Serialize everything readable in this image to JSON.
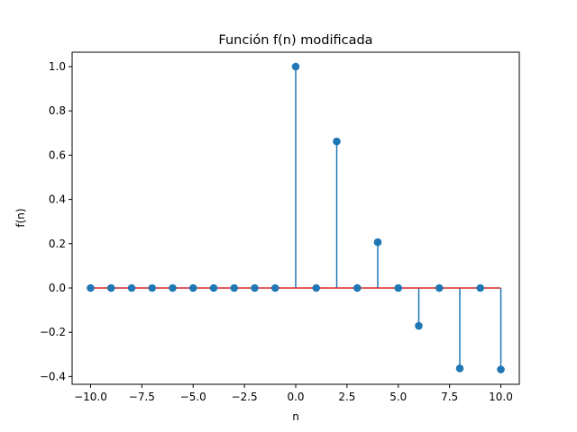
{
  "chart_data": {
    "type": "stem",
    "title": "Función f(n) modificada",
    "xlabel": "n",
    "ylabel": "f(n)",
    "xlim": [
      -10.9,
      10.9
    ],
    "ylim": [
      -0.435,
      1.065
    ],
    "xticks": [
      -10,
      -7.5,
      -5,
      -2.5,
      0,
      2.5,
      5,
      7.5,
      10
    ],
    "xtick_labels": [
      "−10.0",
      "−7.5",
      "−5.0",
      "−2.5",
      "0.0",
      "2.5",
      "5.0",
      "7.5",
      "10.0"
    ],
    "yticks": [
      -0.4,
      -0.2,
      0,
      0.2,
      0.4,
      0.6,
      0.8,
      1.0
    ],
    "ytick_labels": [
      "−0.4",
      "−0.2",
      "0.0",
      "0.2",
      "0.4",
      "0.6",
      "0.8",
      "1.0"
    ],
    "x": [
      -10,
      -9,
      -8,
      -7,
      -6,
      -5,
      -4,
      -3,
      -2,
      -1,
      0,
      1,
      2,
      3,
      4,
      5,
      6,
      7,
      8,
      9,
      10
    ],
    "y": [
      0,
      0,
      0,
      0,
      0,
      0,
      0,
      0,
      0,
      0,
      1.0,
      0,
      0.662,
      0,
      0.207,
      0,
      -0.171,
      0,
      -0.363,
      0,
      -0.368
    ],
    "colors": {
      "stem": "#1f77b4",
      "marker": "#1f77b4",
      "baseline": "#d62728"
    },
    "grid": false
  }
}
